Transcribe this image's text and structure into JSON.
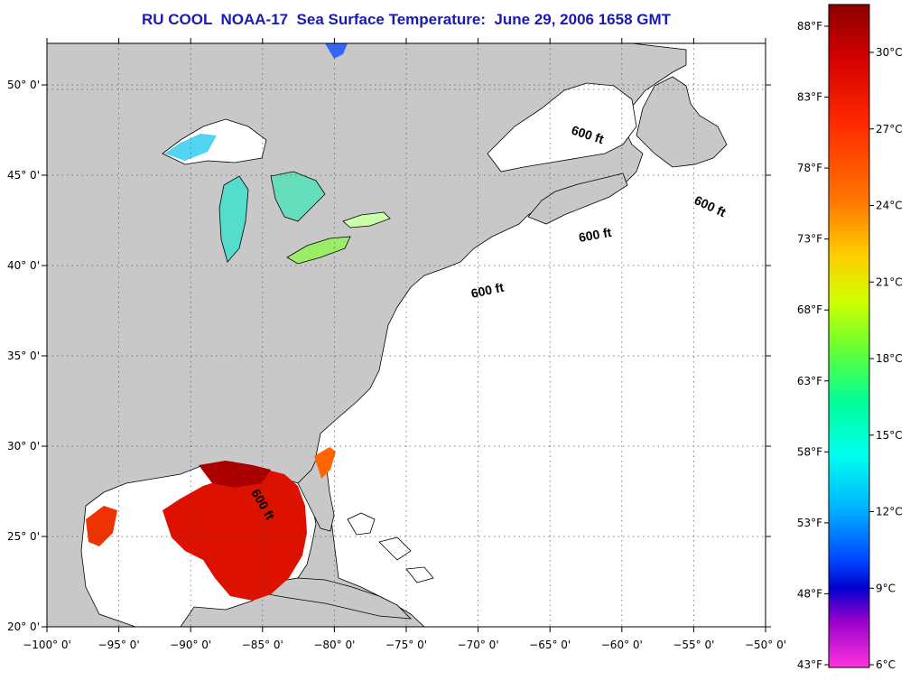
{
  "title": "RU COOL  NOAA-17  Sea Surface Temperature:  June 29, 2006 1658 GMT",
  "map": {
    "lon_range": [
      -100,
      -50
    ],
    "lat_range": [
      20,
      52.3
    ],
    "lon_ticks": [
      {
        "value": -100,
        "label": "−100° 0'"
      },
      {
        "value": -95,
        "label": "−95° 0'"
      },
      {
        "value": -90,
        "label": "−90° 0'"
      },
      {
        "value": -85,
        "label": "−85° 0'"
      },
      {
        "value": -80,
        "label": "−80° 0'"
      },
      {
        "value": -75,
        "label": "−75° 0'"
      },
      {
        "value": -70,
        "label": "−70° 0'"
      },
      {
        "value": -65,
        "label": "−65° 0'"
      },
      {
        "value": -60,
        "label": "−60° 0'"
      },
      {
        "value": -55,
        "label": "−55° 0'"
      },
      {
        "value": -50,
        "label": "−50° 0'"
      }
    ],
    "lat_ticks": [
      {
        "value": 20,
        "label": "20° 0'"
      },
      {
        "value": 25,
        "label": "25° 0'"
      },
      {
        "value": 30,
        "label": "30° 0'"
      },
      {
        "value": 35,
        "label": "35° 0'"
      },
      {
        "value": 40,
        "label": "40° 0'"
      },
      {
        "value": 45,
        "label": "45° 0'"
      },
      {
        "value": 50,
        "label": "50° 0'"
      }
    ],
    "contour_labels": [
      "600 ft",
      "600 ft",
      "600 ft",
      "600 ft",
      "600 ft"
    ],
    "colors": {
      "land": "#c8c8c8",
      "ocean_no_data": "#ffffff"
    }
  },
  "colorbar": {
    "celsius_labels": [
      "30°C",
      "27°C",
      "24°C",
      "21°C",
      "18°C",
      "15°C",
      "12°C",
      "9°C",
      "6°C"
    ],
    "fahrenheit_labels": [
      "88°F",
      "83°F",
      "78°F",
      "73°F",
      "68°F",
      "63°F",
      "58°F",
      "53°F",
      "48°F",
      "43°F"
    ],
    "colors": [
      "#8b0000",
      "#d40000",
      "#ff2a00",
      "#ff7a00",
      "#ffd000",
      "#ccff00",
      "#66ff33",
      "#00ff99",
      "#00ffee",
      "#00b3ff",
      "#0044ff",
      "#0000cc",
      "#9900cc",
      "#ff33dd"
    ]
  }
}
